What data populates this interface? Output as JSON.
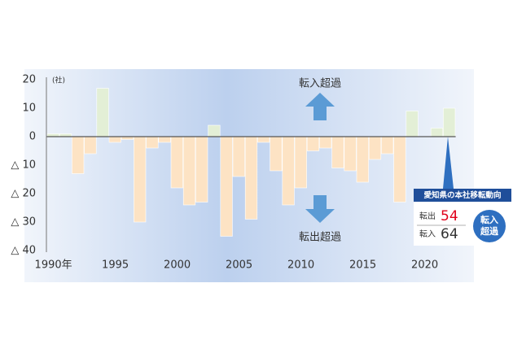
{
  "chart_data": {
    "type": "bar",
    "y_axis_label": "(社)",
    "categories": [
      "1990年",
      null,
      null,
      null,
      null,
      "1995",
      null,
      null,
      null,
      null,
      "2000",
      null,
      null,
      null,
      null,
      "2005",
      null,
      null,
      null,
      null,
      "2010",
      null,
      null,
      null,
      null,
      "2015",
      null,
      null,
      null,
      null,
      "2020",
      null,
      null
    ],
    "values": [
      1,
      1,
      -13,
      -6,
      17,
      -2,
      -1,
      -30,
      -4,
      -2,
      -18,
      -24,
      -23,
      4,
      -35,
      -14,
      -29,
      -2,
      -12,
      -24,
      -18,
      -5,
      -4,
      -11,
      -12,
      -16,
      -8,
      -6,
      -23,
      9,
      0,
      3,
      10
    ],
    "positive_color": "#e3efd6",
    "negative_color": "#fde3c4",
    "ylim": [
      -40,
      20
    ],
    "yticks": [
      20,
      10,
      0,
      {
        "value": -10,
        "label": "△ 10"
      },
      {
        "value": -20,
        "label": "△ 20"
      },
      {
        "value": -30,
        "label": "△ 30"
      },
      {
        "value": -40,
        "label": "△ 40"
      }
    ],
    "annotations": {
      "up": "転入超過",
      "down": "転出超過"
    },
    "inset": {
      "title": "愛知県の本社移転動向",
      "rows": [
        {
          "label": "転出",
          "value": 54,
          "color": "#e0001b"
        },
        {
          "label": "転入",
          "value": 64,
          "color": "#333333"
        }
      ],
      "badge": [
        "転入",
        "超過"
      ]
    }
  }
}
